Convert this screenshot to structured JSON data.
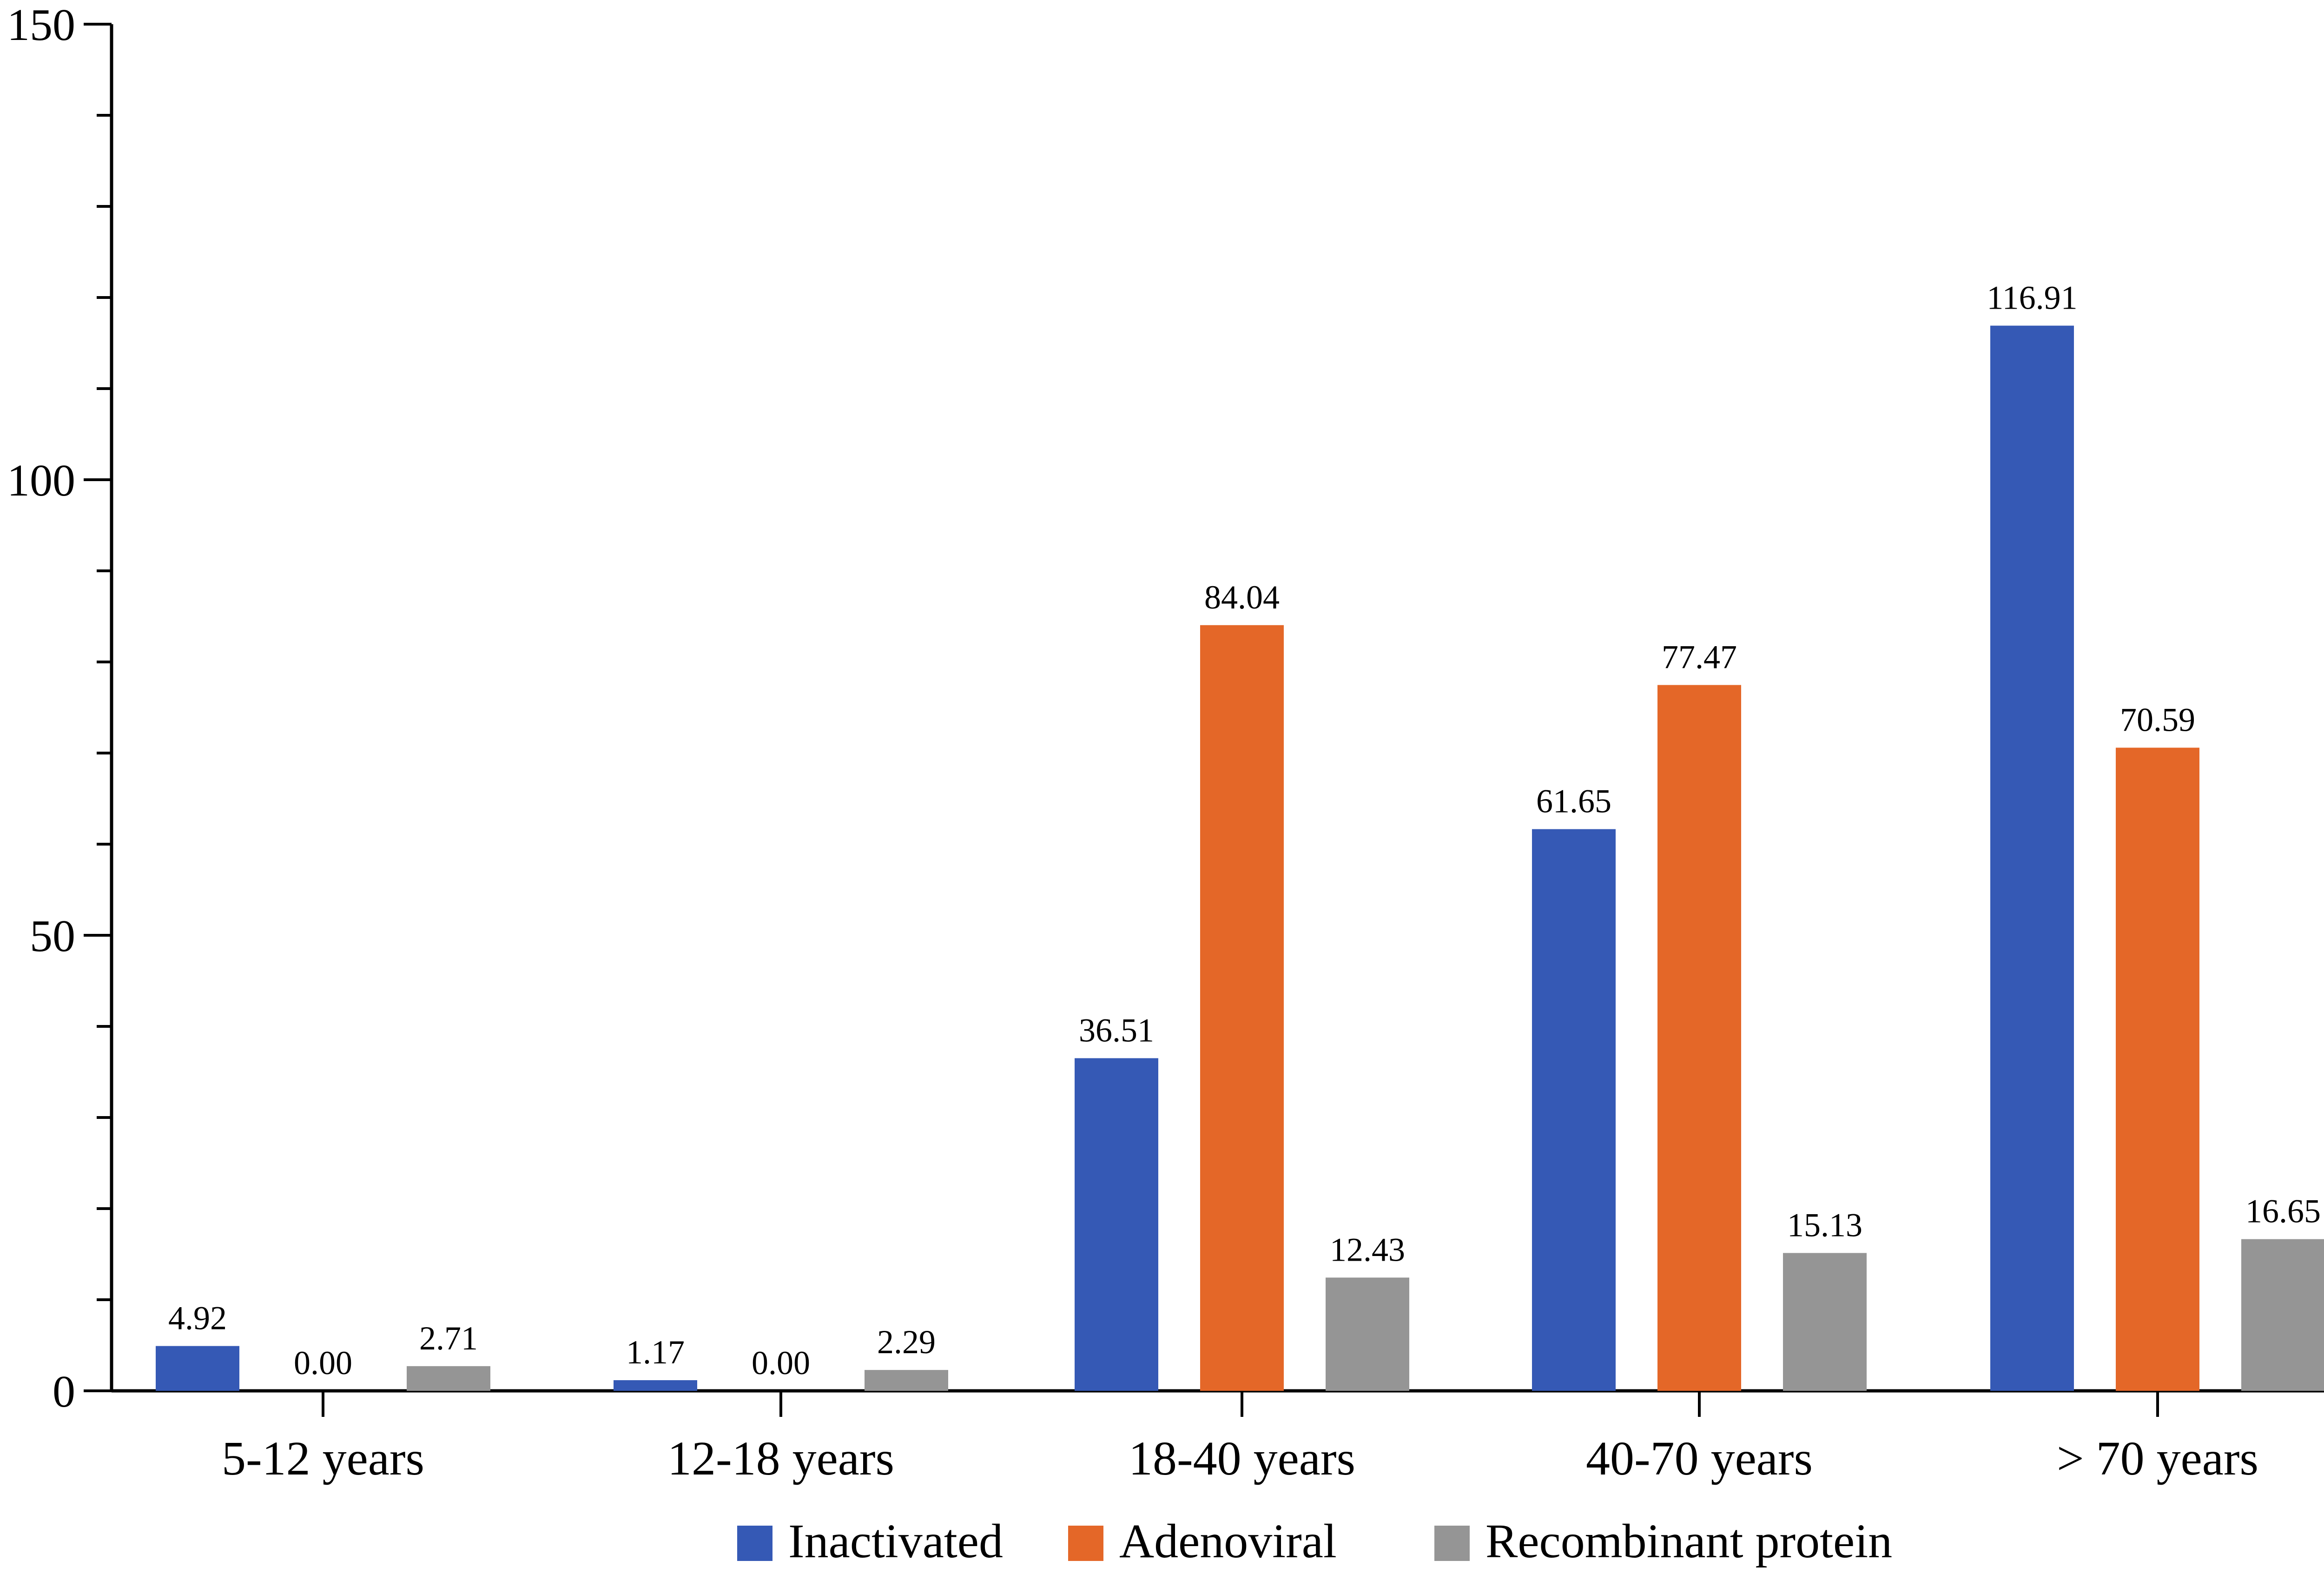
{
  "chart_data": {
    "type": "bar",
    "categories": [
      "5-12 years",
      "12-18 years",
      "18-40 years",
      "40-70 years",
      "> 70 years"
    ],
    "series": [
      {
        "name": "Inactivated",
        "color": "#3559b5",
        "values": [
          4.92,
          1.17,
          36.51,
          61.65,
          116.91
        ],
        "labels": [
          "4.92",
          "1.17",
          "36.51",
          "61.65",
          "116.91"
        ]
      },
      {
        "name": "Adenoviral",
        "color": "#e46728",
        "values": [
          0.0,
          0.0,
          84.04,
          77.47,
          70.59
        ],
        "labels": [
          "0.00",
          "0.00",
          "84.04",
          "77.47",
          "70.59"
        ]
      },
      {
        "name": "Recombinant protein",
        "color": "#959595",
        "values": [
          2.71,
          2.29,
          12.43,
          15.13,
          16.65
        ],
        "labels": [
          "2.71",
          "2.29",
          "12.43",
          "15.13",
          "16.65"
        ]
      }
    ],
    "title": "",
    "xlabel": "",
    "ylabel": "",
    "ylim": [
      0,
      150
    ],
    "yticks": [
      0,
      50,
      100,
      150
    ],
    "ytick_labels": [
      "0",
      "50",
      "100",
      "150"
    ],
    "grid": false,
    "legend_position": "bottom-center"
  }
}
